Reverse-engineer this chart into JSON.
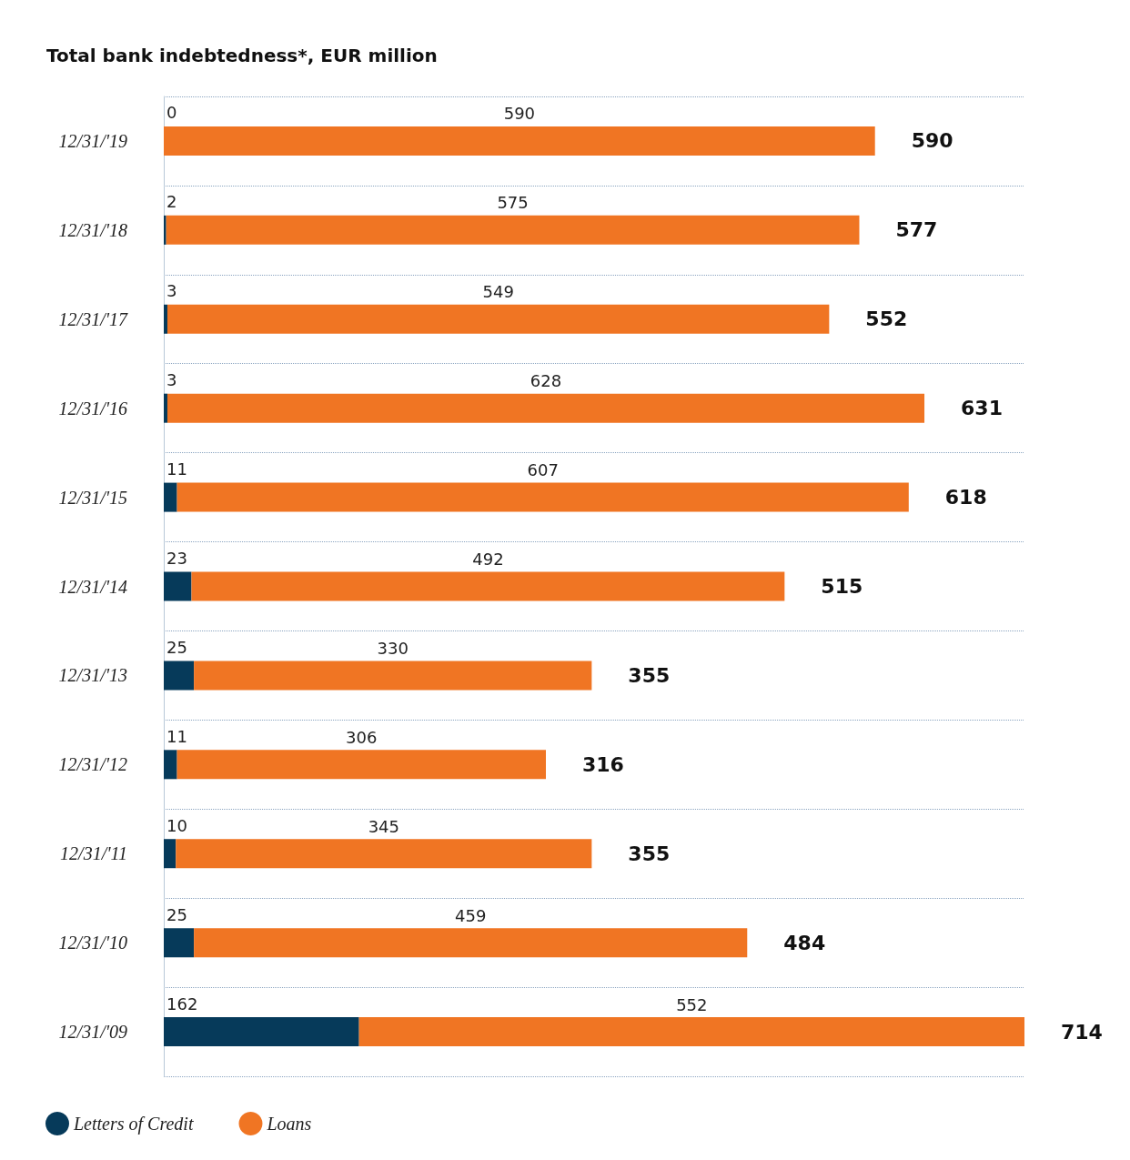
{
  "chart_data": {
    "type": "bar",
    "orientation": "horizontal",
    "stacked": true,
    "title": "Total bank indebtedness*, EUR million",
    "categories": [
      "12/31/'19",
      "12/31/'18",
      "12/31/'17",
      "12/31/'16",
      "12/31/'15",
      "12/31/'14",
      "12/31/'13",
      "12/31/'12",
      "12/31/'11",
      "12/31/'10",
      "12/31/'09"
    ],
    "series": [
      {
        "name": "Letters of Credit",
        "color": "#063a5a",
        "values": [
          0,
          2,
          3,
          3,
          11,
          23,
          25,
          11,
          10,
          25,
          162
        ]
      },
      {
        "name": "Loans",
        "color": "#f07523",
        "values": [
          590,
          575,
          549,
          628,
          607,
          492,
          330,
          306,
          345,
          459,
          552
        ]
      }
    ],
    "totals": [
      "590",
      "577",
      "552",
      "631",
      "618",
      "515",
      "355",
      "316",
      "355",
      "484",
      "714"
    ],
    "data_labels": true,
    "grid": "y",
    "legend": "bottom left"
  }
}
